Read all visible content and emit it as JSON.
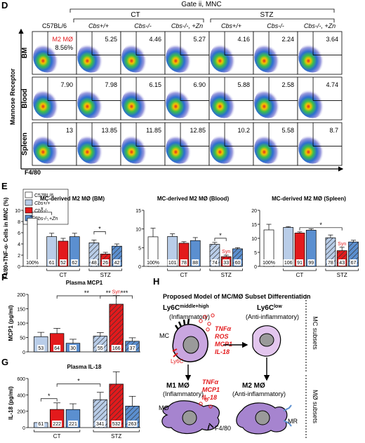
{
  "panel_letters": {
    "d": "D",
    "e": "E",
    "f": "F",
    "g": "G",
    "h": "H"
  },
  "flow": {
    "gate_label": "Gate ii, MNC",
    "group_ct": "CT",
    "group_stz": "STZ",
    "columns": [
      "C57BL/6",
      "Cbs+/+",
      "Cbs-/-",
      "Cbs-/-, +Zn",
      "Cbs+/+",
      "Cbs-/-",
      "Cbs-/-, +Zn"
    ],
    "rows": [
      "BM",
      "Blood",
      "Spleen"
    ],
    "y_axis": "Mannose Receptor",
    "x_axis": "F4/80",
    "m2_label": "M2 MØ",
    "values": [
      [
        "8.56%",
        "5.25",
        "4.46",
        "5.27",
        "4.16",
        "2.24",
        "3.64"
      ],
      [
        "7.90",
        "7.98",
        "6.15",
        "6.90",
        "5.88",
        "2.58",
        "4.74"
      ],
      [
        "13",
        "13.85",
        "11.85",
        "12.85",
        "10.2",
        "5.58",
        "8.7"
      ]
    ]
  },
  "legend": {
    "items": [
      "C57BL/6",
      "Cbs+/+",
      "Cbs-/-",
      "Cbs-/-,+Zn"
    ]
  },
  "colors": {
    "light_blue": "#b9cde8",
    "red": "#e31a1c",
    "blue": "#5b8fd0",
    "syn": "#e31a1c"
  },
  "chart_data": [
    {
      "type": "bar",
      "title": "MC-derived M2 MØ (BM)",
      "ylabel": "F4/80+TNF-α- Cells in MNC (%)",
      "ylim": [
        0,
        10
      ],
      "yticks": [
        0,
        2,
        4,
        6,
        8,
        10
      ],
      "groups": [
        "",
        "CT",
        "STZ"
      ],
      "values": [
        8.6,
        5.3,
        4.5,
        5.3,
        4.2,
        2.2,
        3.6
      ],
      "errors": [
        0.3,
        0.6,
        0.5,
        0.6,
        0.5,
        0.3,
        0.4
      ],
      "bar_labels": [
        "100%",
        "61",
        "52",
        "62",
        "48",
        "26",
        "42"
      ],
      "annotations": [
        {
          "text": "*",
          "between": [
            0,
            1
          ]
        },
        {
          "text": "*",
          "between": [
            4,
            5
          ]
        }
      ]
    },
    {
      "type": "bar",
      "title": "MC-derived M2 MØ (Blood)",
      "ylim": [
        0,
        15
      ],
      "yticks": [
        0,
        5,
        10,
        15
      ],
      "groups": [
        "",
        "CT",
        "STZ"
      ],
      "values": [
        7.9,
        8.0,
        6.2,
        6.9,
        5.9,
        2.6,
        4.7
      ],
      "errors": [
        2.3,
        0.7,
        0.4,
        0.8,
        0.5,
        0.4,
        0.3
      ],
      "bar_labels": [
        "100%",
        "101",
        "78",
        "88",
        "74",
        "33",
        "60"
      ],
      "annotations": [
        {
          "text": "*",
          "between": [
            4,
            5
          ]
        },
        {
          "text": "Syn",
          "bar": 5
        }
      ]
    },
    {
      "type": "bar",
      "title": "MC-derived M2 MØ (Spleen)",
      "ylim": [
        0,
        20
      ],
      "yticks": [
        0,
        5,
        10,
        15,
        20
      ],
      "groups": [
        "",
        "CT",
        "STZ"
      ],
      "values": [
        13.0,
        13.9,
        11.9,
        12.9,
        10.2,
        5.6,
        8.7
      ],
      "errors": [
        2.0,
        0.3,
        0.4,
        0.5,
        1.0,
        1.2,
        0.6
      ],
      "bar_labels": [
        "100%",
        "106",
        "91",
        "99",
        "78",
        "43",
        "67"
      ],
      "annotations": [
        {
          "text": "*",
          "between": [
            2,
            5
          ]
        },
        {
          "text": "Syn",
          "bar": 5
        }
      ]
    },
    {
      "type": "bar",
      "title": "Plasma MCP1",
      "ylabel": "MCP1 (pg/ml)",
      "ylim": [
        0,
        200
      ],
      "yticks": [
        0,
        50,
        100,
        150,
        200
      ],
      "groups": [
        "CT",
        "STZ"
      ],
      "values": [
        53,
        64,
        30,
        55,
        166,
        37
      ],
      "errors": [
        15,
        18,
        14,
        12,
        30,
        12
      ],
      "bar_labels": [
        "53",
        "64",
        "30",
        "55",
        "166",
        "37"
      ],
      "annotations": [
        {
          "text": "**",
          "between": [
            1,
            4
          ]
        },
        {
          "text": "**",
          "between": [
            3,
            4
          ]
        },
        {
          "text": "***",
          "between": [
            4,
            5
          ]
        },
        {
          "text": "Syn",
          "bar": 4
        }
      ]
    },
    {
      "type": "bar",
      "title": "Plasma IL-18",
      "ylabel": "IL-18 (pg/ml)",
      "ylim": [
        0,
        600
      ],
      "yticks": [
        0,
        200,
        400,
        600
      ],
      "groups": [
        "CT",
        "STZ"
      ],
      "values": [
        61,
        222,
        221,
        341,
        532,
        263
      ],
      "errors": [
        20,
        80,
        70,
        90,
        150,
        120
      ],
      "bar_labels": [
        "61",
        "222",
        "221",
        "341",
        "532",
        "263"
      ],
      "annotations": [
        {
          "text": "*",
          "between": [
            0,
            1
          ]
        },
        {
          "text": "*",
          "between": [
            1,
            3
          ]
        }
      ]
    }
  ],
  "model": {
    "title": "Proposed Model of MC/MØ Subset Differentiation",
    "ly6c_high": "Ly6C",
    "ly6c_high_sup": "middle+high",
    "ly6c_low": "Ly6C",
    "ly6c_low_sup": "low",
    "inflammatory": "(Inflammatory)",
    "anti_inflammatory": "(Anti-inflammatory)",
    "mc_label": "MC",
    "ly6c_marker": "Ly6C",
    "cytokines_top": [
      "TNFα",
      "ROS",
      "MCP1",
      "IL-18"
    ],
    "cytokines_mid": [
      "TNFα",
      "MCP1",
      "IL-18"
    ],
    "m1_title": "M1 MØ",
    "m2_title": "M2 MØ",
    "m1_sub": "(Inflammatory)",
    "m2_sub": "(Anti-inflammatory)",
    "mo_label": "MØ",
    "f480_label": "F4/80",
    "mr_label": "MR",
    "mc_subsets": "MC subsets",
    "mo_subsets": "MØ subsets"
  }
}
